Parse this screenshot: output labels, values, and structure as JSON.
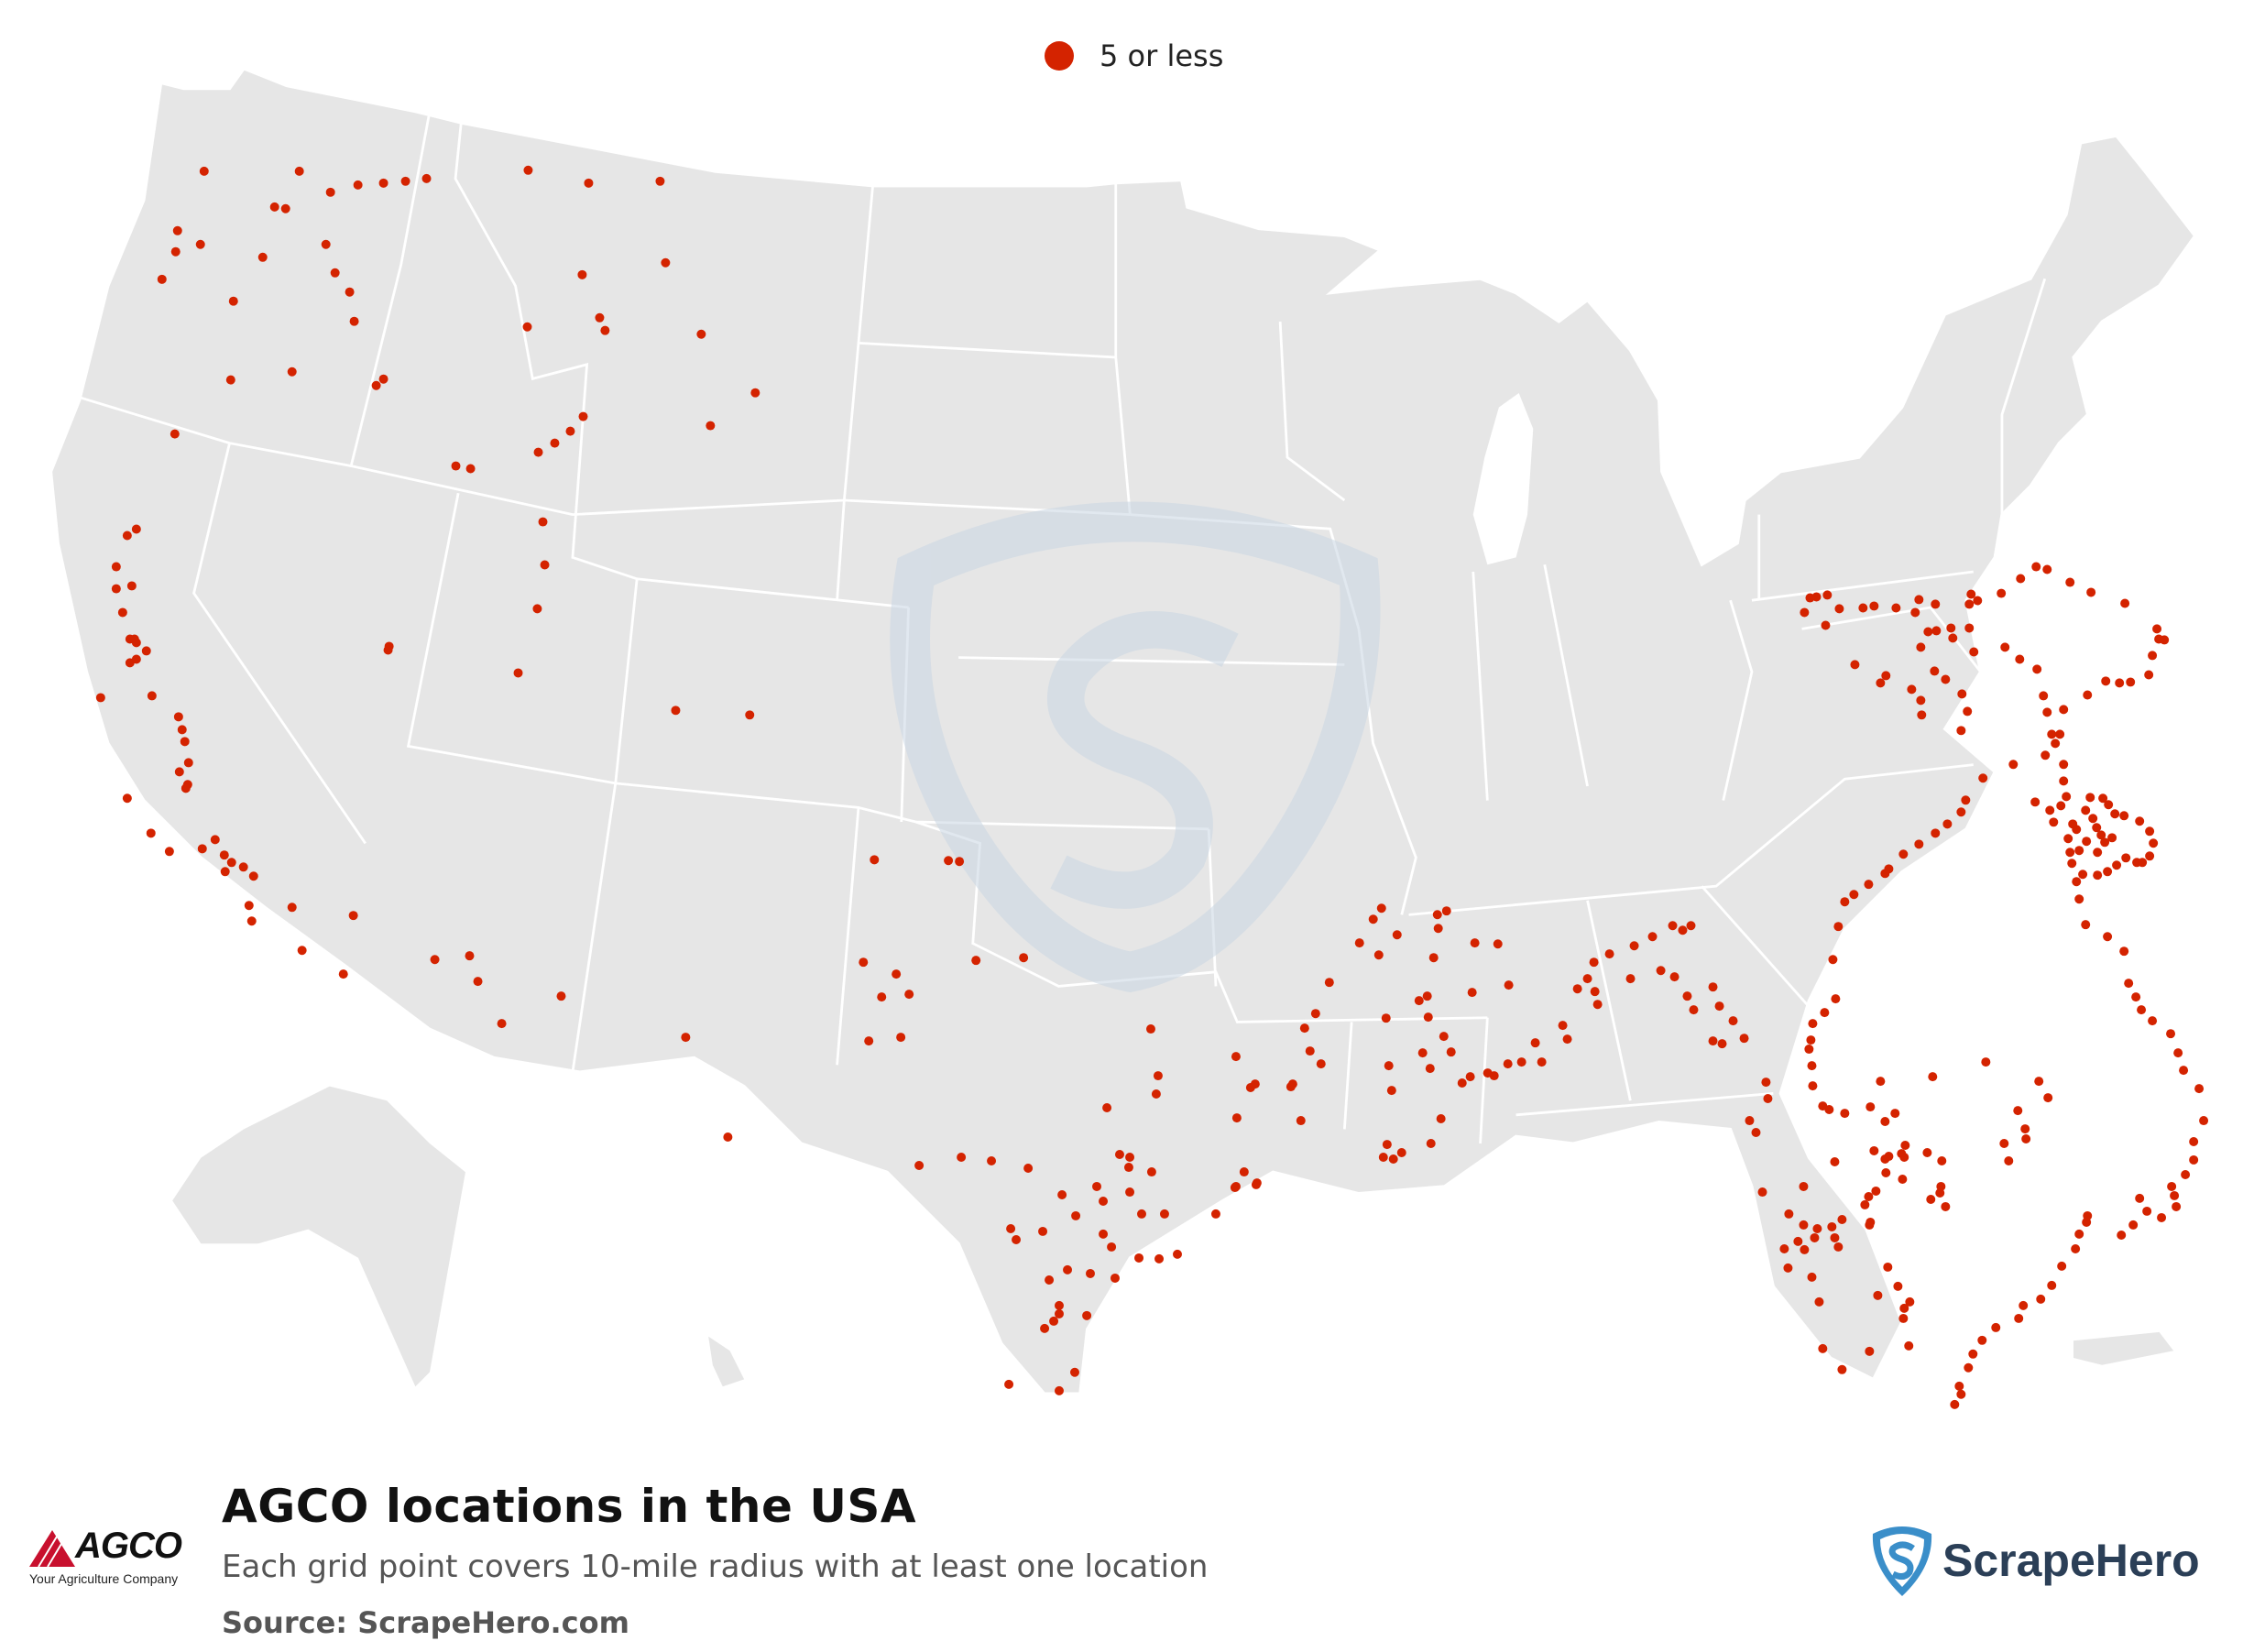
{
  "legend": {
    "label": "5 or less",
    "color": "#d42300"
  },
  "title": "AGCO locations in the USA",
  "subtitle": "Each grid point covers 10-mile radius with at least one location",
  "source": "Source: ScrapeHero.com",
  "agco_logo": {
    "name": "AGCO",
    "tagline": "Your Agriculture Company"
  },
  "scrapehero_logo": {
    "name": "ScrapeHero"
  },
  "colors": {
    "land": "#e6e6e6",
    "border": "#ffffff",
    "point": "#d42300",
    "watermark": "#c9d6e3"
  },
  "map_points": [
    [
      222,
      187
    ],
    [
      326,
      187
    ],
    [
      360,
      210
    ],
    [
      390,
      202
    ],
    [
      418,
      200
    ],
    [
      442,
      198
    ],
    [
      465,
      195
    ],
    [
      299,
      226
    ],
    [
      311,
      228
    ],
    [
      193,
      252
    ],
    [
      191,
      275
    ],
    [
      176,
      305
    ],
    [
      218,
      267
    ],
    [
      286,
      281
    ],
    [
      355,
      267
    ],
    [
      365,
      298
    ],
    [
      381,
      319
    ],
    [
      386,
      351
    ],
    [
      254,
      329
    ],
    [
      318,
      406
    ],
    [
      410,
      421
    ],
    [
      418,
      414
    ],
    [
      190,
      474
    ],
    [
      251,
      415
    ],
    [
      497,
      509
    ],
    [
      513,
      512
    ],
    [
      576,
      186
    ],
    [
      642,
      200
    ],
    [
      720,
      198
    ],
    [
      726,
      287
    ],
    [
      635,
      300
    ],
    [
      654,
      347
    ],
    [
      660,
      361
    ],
    [
      765,
      365
    ],
    [
      575,
      357
    ],
    [
      824,
      429
    ],
    [
      775,
      465
    ],
    [
      605,
      484
    ],
    [
      622,
      471
    ],
    [
      636,
      455
    ],
    [
      587,
      494
    ],
    [
      592,
      570
    ],
    [
      594,
      617
    ],
    [
      586,
      665
    ],
    [
      565,
      735
    ],
    [
      423,
      710
    ],
    [
      109,
      762
    ],
    [
      138,
      585
    ],
    [
      148,
      578
    ],
    [
      126,
      619
    ],
    [
      126,
      643
    ],
    [
      143,
      640
    ],
    [
      133,
      669
    ],
    [
      141,
      698
    ],
    [
      146,
      698
    ],
    [
      148,
      702
    ],
    [
      141,
      724
    ],
    [
      148,
      720
    ],
    [
      159,
      711
    ],
    [
      165,
      760
    ],
    [
      194,
      783
    ],
    [
      198,
      797
    ],
    [
      201,
      810
    ],
    [
      205,
      833
    ],
    [
      195,
      843
    ],
    [
      204,
      857
    ],
    [
      202,
      861
    ],
    [
      138,
      872
    ],
    [
      164,
      910
    ],
    [
      184,
      930
    ],
    [
      220,
      927
    ],
    [
      234,
      917
    ],
    [
      244,
      934
    ],
    [
      252,
      942
    ],
    [
      245,
      952
    ],
    [
      265,
      947
    ],
    [
      276,
      957
    ],
    [
      271,
      989
    ],
    [
      274,
      1006
    ],
    [
      318,
      991
    ],
    [
      329,
      1038
    ],
    [
      374,
      1064
    ],
    [
      385,
      1000
    ],
    [
      474,
      1048
    ],
    [
      512,
      1044
    ],
    [
      521,
      1072
    ],
    [
      547,
      1118
    ],
    [
      612,
      1088
    ],
    [
      424,
      706
    ],
    [
      737,
      776
    ],
    [
      818,
      781
    ],
    [
      954,
      939
    ],
    [
      1035,
      940
    ],
    [
      1047,
      941
    ],
    [
      1065,
      1049
    ],
    [
      1117,
      1046
    ],
    [
      942,
      1051
    ],
    [
      978,
      1064
    ],
    [
      992,
      1086
    ],
    [
      962,
      1089
    ],
    [
      948,
      1137
    ],
    [
      983,
      1133
    ],
    [
      748,
      1133
    ],
    [
      794,
      1242
    ],
    [
      1003,
      1273
    ],
    [
      1049,
      1264
    ],
    [
      1082,
      1268
    ],
    [
      1122,
      1276
    ],
    [
      1232,
      1275
    ],
    [
      1233,
      1264
    ],
    [
      1257,
      1280
    ],
    [
      1233,
      1302
    ],
    [
      1204,
      1312
    ],
    [
      1159,
      1305
    ],
    [
      1103,
      1342
    ],
    [
      1109,
      1354
    ],
    [
      1138,
      1345
    ],
    [
      1174,
      1328
    ],
    [
      1246,
      1326
    ],
    [
      1271,
      1326
    ],
    [
      1243,
      1374
    ],
    [
      1265,
      1375
    ],
    [
      1285,
      1370
    ],
    [
      1327,
      1326
    ],
    [
      1349,
      1296
    ],
    [
      1371,
      1294
    ],
    [
      1348,
      1297
    ],
    [
      1372,
      1292
    ],
    [
      1358,
      1280
    ],
    [
      1365,
      1188
    ],
    [
      1349,
      1154
    ],
    [
      1264,
      1175
    ],
    [
      1262,
      1195
    ],
    [
      1256,
      1124
    ],
    [
      1208,
      1210
    ],
    [
      1222,
      1261
    ],
    [
      1197,
      1296
    ],
    [
      1204,
      1348
    ],
    [
      1213,
      1362
    ],
    [
      1190,
      1391
    ],
    [
      1217,
      1396
    ],
    [
      1145,
      1398
    ],
    [
      1156,
      1426
    ],
    [
      1186,
      1437
    ],
    [
      1173,
      1499
    ],
    [
      1156,
      1519
    ],
    [
      1101,
      1512
    ],
    [
      1140,
      1451
    ],
    [
      1150,
      1443
    ],
    [
      1156,
      1435
    ],
    [
      1165,
      1387
    ],
    [
      1350,
      1221
    ],
    [
      1370,
      1184
    ],
    [
      1409,
      1187
    ],
    [
      1420,
      1224
    ],
    [
      1411,
      1184
    ],
    [
      1430,
      1148
    ],
    [
      1424,
      1123
    ],
    [
      1436,
      1107
    ],
    [
      1442,
      1162
    ],
    [
      1451,
      1073
    ],
    [
      1484,
      1030
    ],
    [
      1499,
      1004
    ],
    [
      1505,
      1043
    ],
    [
      1508,
      992
    ],
    [
      1525,
      1021
    ],
    [
      1565,
      1046
    ],
    [
      1570,
      1014
    ],
    [
      1579,
      995
    ],
    [
      1569,
      999
    ],
    [
      1559,
      1111
    ],
    [
      1553,
      1150
    ],
    [
      1561,
      1167
    ],
    [
      1584,
      1149
    ],
    [
      1596,
      1183
    ],
    [
      1605,
      1176
    ],
    [
      1624,
      1172
    ],
    [
      1631,
      1175
    ],
    [
      1607,
      1084
    ],
    [
      1647,
      1076
    ],
    [
      1635,
      1031
    ],
    [
      1610,
      1030
    ],
    [
      1576,
      1132
    ],
    [
      1516,
      1164
    ],
    [
      1519,
      1191
    ],
    [
      1514,
      1250
    ],
    [
      1510,
      1264
    ],
    [
      1521,
      1266
    ],
    [
      1530,
      1259
    ],
    [
      1562,
      1249
    ],
    [
      1573,
      1222
    ],
    [
      1513,
      1112
    ],
    [
      1549,
      1093
    ],
    [
      1558,
      1088
    ],
    [
      1646,
      1162
    ],
    [
      1661,
      1160
    ],
    [
      1676,
      1139
    ],
    [
      1683,
      1160
    ],
    [
      1711,
      1135
    ],
    [
      1706,
      1120
    ],
    [
      1722,
      1080
    ],
    [
      1733,
      1069
    ],
    [
      1744,
      1097
    ],
    [
      1741,
      1083
    ],
    [
      1757,
      1042
    ],
    [
      1740,
      1051
    ],
    [
      1780,
      1069
    ],
    [
      1784,
      1033
    ],
    [
      1804,
      1023
    ],
    [
      1826,
      1011
    ],
    [
      1837,
      1016
    ],
    [
      1846,
      1011
    ],
    [
      1813,
      1060
    ],
    [
      1828,
      1067
    ],
    [
      1842,
      1088
    ],
    [
      1849,
      1103
    ],
    [
      1870,
      1078
    ],
    [
      1870,
      1137
    ],
    [
      1880,
      1140
    ],
    [
      1877,
      1099
    ],
    [
      1892,
      1115
    ],
    [
      1904,
      1134
    ],
    [
      1928,
      1182
    ],
    [
      1930,
      1200
    ],
    [
      1910,
      1224
    ],
    [
      1917,
      1237
    ],
    [
      1924,
      1302
    ],
    [
      1953,
      1326
    ],
    [
      1969,
      1338
    ],
    [
      1963,
      1356
    ],
    [
      1970,
      1365
    ],
    [
      1984,
      1342
    ],
    [
      1948,
      1364
    ],
    [
      1952,
      1385
    ],
    [
      1978,
      1395
    ],
    [
      1986,
      1422
    ],
    [
      1990,
      1473
    ],
    [
      2011,
      1496
    ],
    [
      2041,
      1476
    ],
    [
      2084,
      1470
    ],
    [
      2078,
      1440
    ],
    [
      2085,
      1422
    ],
    [
      2079,
      1429
    ],
    [
      2050,
      1415
    ],
    [
      2072,
      1405
    ],
    [
      2061,
      1384
    ],
    [
      2041,
      1338
    ],
    [
      2040,
      1307
    ],
    [
      2077,
      1288
    ],
    [
      2108,
      1310
    ],
    [
      2124,
      1318
    ],
    [
      2118,
      1303
    ],
    [
      2119,
      1296
    ],
    [
      2014,
      1216
    ],
    [
      2003,
      1269
    ],
    [
      2042,
      1209
    ],
    [
      2069,
      1216
    ],
    [
      2110,
      1176
    ],
    [
      2168,
      1160
    ],
    [
      2226,
      1181
    ],
    [
      2236,
      1199
    ],
    [
      2203,
      1213
    ],
    [
      2211,
      1233
    ],
    [
      2212,
      1244
    ],
    [
      2188,
      1249
    ],
    [
      2193,
      1268
    ],
    [
      2120,
      1268
    ],
    [
      2104,
      1259
    ],
    [
      2080,
      1251
    ],
    [
      2079,
      1264
    ],
    [
      2058,
      1266
    ],
    [
      2046,
      1257
    ],
    [
      2058,
      1225
    ],
    [
      2062,
      1263
    ],
    [
      2076,
      1260
    ],
    [
      2059,
      1281
    ],
    [
      2048,
      1301
    ],
    [
      2036,
      1316
    ],
    [
      2042,
      1335
    ],
    [
      2011,
      1332
    ],
    [
      2000,
      1340
    ],
    [
      2007,
      1362
    ],
    [
      2003,
      1352
    ],
    [
      1981,
      1352
    ],
    [
      1969,
      1296
    ],
    [
      1997,
      1212
    ],
    [
      2053,
      1181
    ],
    [
      1990,
      1208
    ],
    [
      1979,
      1186
    ],
    [
      1978,
      1164
    ],
    [
      1975,
      1146
    ],
    [
      1977,
      1136
    ],
    [
      1979,
      1118
    ],
    [
      1992,
      1106
    ],
    [
      2004,
      1091
    ],
    [
      2001,
      1048
    ],
    [
      2007,
      1012
    ],
    [
      2014,
      985
    ],
    [
      2024,
      977
    ],
    [
      2040,
      966
    ],
    [
      2058,
      954
    ],
    [
      2062,
      949
    ],
    [
      2078,
      933
    ],
    [
      2095,
      922
    ],
    [
      2113,
      910
    ],
    [
      2126,
      900
    ],
    [
      2141,
      887
    ],
    [
      2146,
      874
    ],
    [
      2165,
      850
    ],
    [
      2198,
      835
    ],
    [
      2233,
      825
    ],
    [
      2249,
      802
    ],
    [
      2253,
      775
    ],
    [
      2279,
      759
    ],
    [
      2299,
      744
    ],
    [
      2314,
      746
    ],
    [
      2326,
      745
    ],
    [
      2346,
      737
    ],
    [
      2350,
      716
    ],
    [
      2357,
      698
    ],
    [
      2363,
      699
    ],
    [
      2355,
      687
    ],
    [
      2320,
      659
    ],
    [
      2283,
      647
    ],
    [
      2260,
      636
    ],
    [
      2235,
      622
    ],
    [
      2223,
      619
    ],
    [
      2206,
      632
    ],
    [
      2185,
      648
    ],
    [
      2152,
      649
    ],
    [
      2159,
      656
    ],
    [
      2150,
      660
    ],
    [
      2113,
      660
    ],
    [
      2095,
      655
    ],
    [
      2091,
      669
    ],
    [
      2070,
      664
    ],
    [
      2046,
      662
    ],
    [
      2034,
      664
    ],
    [
      2008,
      665
    ],
    [
      1995,
      650
    ],
    [
      1983,
      652
    ],
    [
      1976,
      653
    ],
    [
      1970,
      669
    ],
    [
      1993,
      683
    ],
    [
      2025,
      726
    ],
    [
      2059,
      738
    ],
    [
      2053,
      746
    ],
    [
      2087,
      753
    ],
    [
      2097,
      765
    ],
    [
      2098,
      781
    ],
    [
      2141,
      798
    ],
    [
      2148,
      777
    ],
    [
      2142,
      758
    ],
    [
      2124,
      742
    ],
    [
      2112,
      733
    ],
    [
      2097,
      707
    ],
    [
      2132,
      697
    ],
    [
      2105,
      690
    ],
    [
      2114,
      689
    ],
    [
      2130,
      686
    ],
    [
      2150,
      686
    ],
    [
      2155,
      712
    ],
    [
      2189,
      707
    ],
    [
      2205,
      720
    ],
    [
      2224,
      731
    ],
    [
      2231,
      760
    ],
    [
      2235,
      778
    ],
    [
      2240,
      802
    ],
    [
      2244,
      812
    ],
    [
      2253,
      835
    ],
    [
      2253,
      853
    ],
    [
      2256,
      870
    ],
    [
      2250,
      880
    ],
    [
      2222,
      876
    ],
    [
      2238,
      885
    ],
    [
      2242,
      898
    ],
    [
      2263,
      900
    ],
    [
      2267,
      906
    ],
    [
      2258,
      916
    ],
    [
      2260,
      931
    ],
    [
      2262,
      943
    ],
    [
      2274,
      955
    ],
    [
      2290,
      956
    ],
    [
      2301,
      952
    ],
    [
      2311,
      945
    ],
    [
      2321,
      937
    ],
    [
      2333,
      942
    ],
    [
      2339,
      942
    ],
    [
      2347,
      935
    ],
    [
      2351,
      921
    ],
    [
      2347,
      908
    ],
    [
      2336,
      897
    ],
    [
      2319,
      891
    ],
    [
      2309,
      889
    ],
    [
      2302,
      879
    ],
    [
      2296,
      872
    ],
    [
      2282,
      871
    ],
    [
      2277,
      885
    ],
    [
      2285,
      894
    ],
    [
      2289,
      904
    ],
    [
      2278,
      919
    ],
    [
      2270,
      929
    ],
    [
      2290,
      931
    ],
    [
      2298,
      920
    ],
    [
      2294,
      912
    ],
    [
      2306,
      915
    ],
    [
      2267,
      963
    ],
    [
      2270,
      982
    ],
    [
      2277,
      1010
    ],
    [
      2301,
      1023
    ],
    [
      2319,
      1039
    ],
    [
      2324,
      1074
    ],
    [
      2332,
      1089
    ],
    [
      2338,
      1103
    ],
    [
      2350,
      1115
    ],
    [
      2370,
      1129
    ],
    [
      2378,
      1150
    ],
    [
      2384,
      1169
    ],
    [
      2401,
      1189
    ],
    [
      2406,
      1224
    ],
    [
      2395,
      1247
    ],
    [
      2395,
      1267
    ],
    [
      2386,
      1283
    ],
    [
      2371,
      1296
    ],
    [
      2374,
      1306
    ],
    [
      2376,
      1318
    ],
    [
      2360,
      1330
    ],
    [
      2344,
      1323
    ],
    [
      2336,
      1309
    ],
    [
      2329,
      1338
    ],
    [
      2316,
      1349
    ],
    [
      2278,
      1335
    ],
    [
      2279,
      1328
    ],
    [
      2270,
      1348
    ],
    [
      2266,
      1364
    ],
    [
      2251,
      1383
    ],
    [
      2240,
      1404
    ],
    [
      2228,
      1419
    ],
    [
      2209,
      1426
    ],
    [
      2204,
      1440
    ],
    [
      2179,
      1450
    ],
    [
      2164,
      1464
    ],
    [
      2154,
      1479
    ],
    [
      2149,
      1494
    ],
    [
      2139,
      1514
    ],
    [
      2141,
      1523
    ],
    [
      2134,
      1534
    ],
    [
      2127,
      1550
    ],
    [
      2117,
      1556
    ],
    [
      2103,
      1565
    ],
    [
      2091,
      1574
    ],
    [
      2085,
      1580
    ],
    [
      2086,
      1593
    ],
    [
      2083,
      1604
    ],
    [
      2085,
      1615
    ],
    [
      2073,
      1627
    ],
    [
      2072,
      1641
    ],
    [
      2068,
      1653
    ],
    [
      2043,
      1661
    ],
    [
      2020,
      1667
    ],
    [
      2007,
      1676
    ],
    [
      2010,
      1693
    ],
    [
      2037,
      1704
    ],
    [
      2064,
      1713
    ],
    [
      2074,
      1730
    ],
    [
      2079,
      1748
    ],
    [
      2084,
      1768
    ],
    [
      2090,
      1782
    ],
    [
      2097,
      1795
    ],
    [
      2100,
      1803
    ]
  ]
}
